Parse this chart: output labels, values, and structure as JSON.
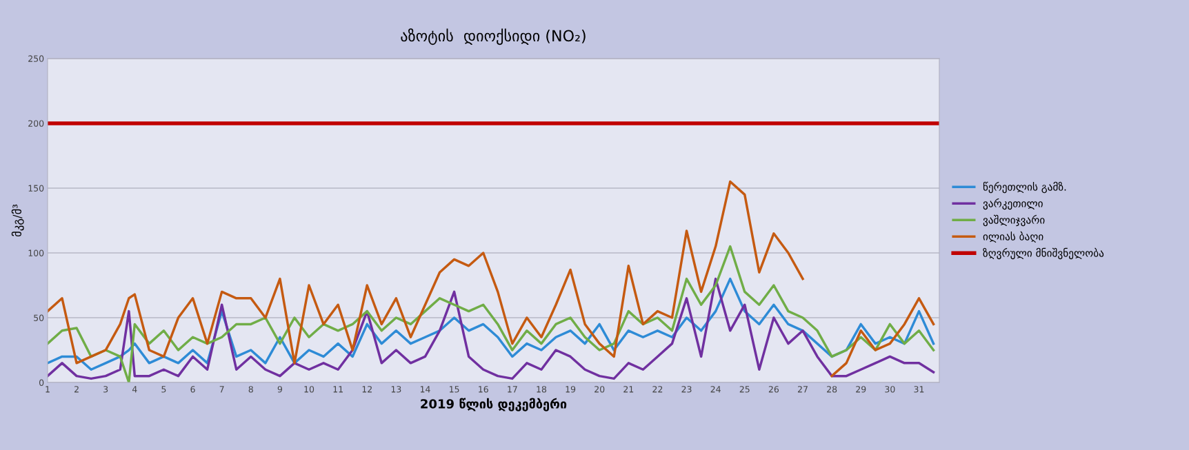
{
  "chart_data": {
    "type": "line",
    "title": "აზოტის  დიოქსიდი (NO₂)",
    "xlabel": "2019 წლის დეკემბერი",
    "ylabel": "მკგ/მ³",
    "x": [
      1,
      1.5,
      2,
      2.5,
      3,
      3.5,
      3.8,
      4,
      4.5,
      5,
      5.5,
      6,
      6.5,
      7,
      7.5,
      8,
      8.5,
      9,
      9.5,
      10,
      10.5,
      11,
      11.5,
      12,
      12.5,
      13,
      13.5,
      14,
      14.5,
      15,
      15.5,
      16,
      16.5,
      17,
      17.5,
      18,
      18.5,
      19,
      19.5,
      20,
      20.5,
      21,
      21.5,
      22,
      22.5,
      23,
      23.5,
      24,
      24.5,
      25,
      25.5,
      26,
      26.5,
      27,
      27.5,
      28,
      28.5,
      29,
      29.5,
      30,
      30.5,
      31,
      31.5
    ],
    "series": [
      {
        "name": "წერეთლის გამზ.",
        "color": "#2e8bd6",
        "values": [
          15,
          20,
          20,
          10,
          15,
          20,
          25,
          30,
          15,
          20,
          15,
          25,
          15,
          55,
          20,
          25,
          15,
          35,
          15,
          25,
          20,
          30,
          20,
          45,
          30,
          40,
          30,
          35,
          40,
          50,
          40,
          45,
          35,
          20,
          30,
          25,
          35,
          40,
          30,
          45,
          25,
          40,
          35,
          40,
          35,
          50,
          40,
          55,
          80,
          55,
          45,
          60,
          45,
          40,
          30,
          20,
          25,
          45,
          30,
          35,
          30,
          55,
          30
        ]
      },
      {
        "name": "ვარკეთილი",
        "color": "#7030a0",
        "values": [
          5,
          15,
          5,
          3,
          5,
          10,
          55,
          5,
          5,
          10,
          5,
          20,
          10,
          60,
          10,
          20,
          10,
          5,
          15,
          10,
          15,
          10,
          25,
          55,
          15,
          25,
          15,
          20,
          40,
          70,
          20,
          10,
          5,
          3,
          15,
          10,
          25,
          20,
          10,
          5,
          3,
          15,
          10,
          20,
          30,
          65,
          20,
          80,
          40,
          60,
          10,
          50,
          30,
          40,
          20,
          5,
          5,
          10,
          15,
          20,
          15,
          15,
          8
        ]
      },
      {
        "name": "ვაშლიჯვარი",
        "color": "#70ad47",
        "values": [
          30,
          40,
          42,
          20,
          25,
          20,
          0,
          45,
          30,
          40,
          25,
          35,
          30,
          35,
          45,
          45,
          50,
          30,
          50,
          35,
          45,
          40,
          45,
          55,
          40,
          50,
          45,
          55,
          65,
          60,
          55,
          60,
          45,
          25,
          40,
          30,
          45,
          50,
          35,
          25,
          30,
          55,
          45,
          50,
          40,
          80,
          60,
          75,
          105,
          70,
          60,
          75,
          55,
          50,
          40,
          20,
          25,
          35,
          25,
          45,
          30,
          40,
          25
        ]
      },
      {
        "name": "ილიას ბაღი",
        "color": "#c55a11",
        "values": [
          55,
          65,
          15,
          20,
          25,
          45,
          65,
          68,
          25,
          20,
          50,
          65,
          30,
          70,
          65,
          65,
          50,
          80,
          15,
          75,
          45,
          60,
          25,
          75,
          45,
          65,
          35,
          60,
          85,
          95,
          90,
          100,
          70,
          30,
          50,
          35,
          60,
          87,
          45,
          30,
          20,
          90,
          45,
          55,
          50,
          117,
          70,
          105,
          155,
          145,
          85,
          115,
          100,
          80,
          null,
          5,
          15,
          40,
          25,
          30,
          45,
          65,
          45
        ]
      }
    ],
    "ref_lines": [
      {
        "axis": "y",
        "value": 200,
        "label": "ზღვრული მნიშვნელობა",
        "color": "#c00000"
      }
    ],
    "xlim": [
      1,
      31.7
    ],
    "xticks": [
      1,
      2,
      3,
      4,
      5,
      6,
      7,
      8,
      9,
      10,
      11,
      12,
      13,
      14,
      15,
      16,
      17,
      18,
      19,
      20,
      21,
      22,
      23,
      24,
      25,
      26,
      27,
      28,
      29,
      30,
      31
    ],
    "ylim": [
      0,
      250
    ],
    "yticks": [
      0,
      50,
      100,
      150,
      200,
      250
    ],
    "grid": "y",
    "legend": "right",
    "marker": "none",
    "line_style": "solid"
  }
}
